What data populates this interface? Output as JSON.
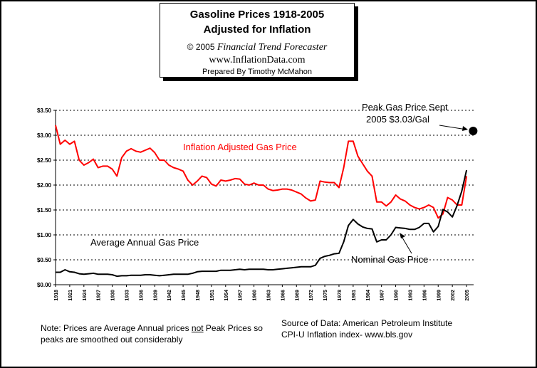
{
  "header": {
    "title_line1": "Gasoline Prices 1918-2005",
    "title_line2": "Adjusted for Inflation",
    "copyright_prefix": "© 2005",
    "copyright_name": "Financial Trend Forecaster",
    "website": "www.InflationData.com",
    "prepared_by": "Prepared By Timothy McMahon"
  },
  "notes": {
    "left_line1_a": "Note: Prices are Average Annual prices ",
    "left_line1_b": "not",
    "left_line1_c": " Peak Prices so",
    "left_line2": "peaks are smoothed out considerably",
    "source_line1": "Source of Data:  American Petroleum Institute",
    "source_line2": "CPI-U Inflation index-   www.bls.gov"
  },
  "colors": {
    "inflation_adjusted": "#ff0000",
    "nominal": "#000000",
    "grid": "#000000"
  },
  "chart_data": {
    "type": "line",
    "title": "Gasoline Prices 1918-2005",
    "subtitle": "Adjusted for Inflation",
    "xlabel": "",
    "ylabel": "",
    "ylim": [
      0,
      3.5
    ],
    "y_ticks": [
      "$0.00",
      "$0.50",
      "$1.00",
      "$1.50",
      "$2.00",
      "$2.50",
      "$3.00",
      "$3.50"
    ],
    "x_ticks": [
      1918,
      1921,
      1924,
      1927,
      1930,
      1933,
      1936,
      1939,
      1942,
      1945,
      1948,
      1951,
      1954,
      1957,
      1960,
      1963,
      1966,
      1969,
      1972,
      1975,
      1978,
      1981,
      1984,
      1987,
      1990,
      1993,
      1996,
      1999,
      2002,
      2005
    ],
    "grid": "horizontal dotted",
    "series_labels": {
      "adjusted": "Inflation Adjusted Gas Price",
      "average": "Average Annual Gas Price",
      "nominal": "Nominal Gas Price"
    },
    "annotation": {
      "text_line1": "Peak Gas Price Sept",
      "text_line2": "2005 $3.03/Gal",
      "year": 2005.5,
      "value": 3.1
    },
    "series": [
      {
        "name": "Inflation Adjusted Gas Price",
        "color": "#ff0000",
        "x": [
          1918,
          1919,
          1920,
          1921,
          1922,
          1923,
          1924,
          1925,
          1926,
          1927,
          1928,
          1929,
          1930,
          1931,
          1932,
          1933,
          1934,
          1935,
          1936,
          1937,
          1938,
          1939,
          1940,
          1941,
          1942,
          1943,
          1944,
          1945,
          1946,
          1947,
          1948,
          1949,
          1950,
          1951,
          1952,
          1953,
          1954,
          1955,
          1956,
          1957,
          1958,
          1959,
          1960,
          1961,
          1962,
          1963,
          1964,
          1965,
          1966,
          1967,
          1968,
          1969,
          1970,
          1971,
          1972,
          1973,
          1974,
          1975,
          1976,
          1977,
          1978,
          1979,
          1980,
          1981,
          1982,
          1983,
          1984,
          1985,
          1986,
          1987,
          1988,
          1989,
          1990,
          1991,
          1992,
          1993,
          1994,
          1995,
          1996,
          1997,
          1998,
          1999,
          2000,
          2001,
          2002,
          2003,
          2004,
          2005
        ],
        "values": [
          3.2,
          2.82,
          2.9,
          2.82,
          2.88,
          2.5,
          2.4,
          2.45,
          2.52,
          2.35,
          2.38,
          2.38,
          2.32,
          2.18,
          2.55,
          2.68,
          2.73,
          2.68,
          2.66,
          2.7,
          2.74,
          2.65,
          2.5,
          2.5,
          2.4,
          2.35,
          2.32,
          2.28,
          2.1,
          2.0,
          2.08,
          2.18,
          2.15,
          2.02,
          1.98,
          2.1,
          2.08,
          2.1,
          2.13,
          2.12,
          2.02,
          2.0,
          2.04,
          2.0,
          2.0,
          1.92,
          1.89,
          1.9,
          1.92,
          1.92,
          1.9,
          1.86,
          1.82,
          1.74,
          1.68,
          1.7,
          2.08,
          2.06,
          2.05,
          2.05,
          1.95,
          2.35,
          2.88,
          2.88,
          2.58,
          2.43,
          2.28,
          2.18,
          1.66,
          1.66,
          1.58,
          1.66,
          1.8,
          1.72,
          1.68,
          1.6,
          1.55,
          1.52,
          1.55,
          1.6,
          1.55,
          1.34,
          1.42,
          1.75,
          1.7,
          1.6,
          1.6,
          2.18
        ]
      },
      {
        "name": "Nominal Gas Price",
        "color": "#000000",
        "x": [
          1918,
          1919,
          1920,
          1921,
          1922,
          1923,
          1924,
          1925,
          1926,
          1927,
          1928,
          1929,
          1930,
          1931,
          1932,
          1933,
          1934,
          1935,
          1936,
          1937,
          1938,
          1939,
          1940,
          1941,
          1942,
          1943,
          1944,
          1945,
          1946,
          1947,
          1948,
          1949,
          1950,
          1951,
          1952,
          1953,
          1954,
          1955,
          1956,
          1957,
          1958,
          1959,
          1960,
          1961,
          1962,
          1963,
          1964,
          1965,
          1966,
          1967,
          1968,
          1969,
          1970,
          1971,
          1972,
          1973,
          1974,
          1975,
          1976,
          1977,
          1978,
          1979,
          1980,
          1981,
          1982,
          1983,
          1984,
          1985,
          1986,
          1987,
          1988,
          1989,
          1990,
          1991,
          1992,
          1993,
          1994,
          1995,
          1996,
          1997,
          1998,
          1999,
          2000,
          2001,
          2002,
          2003,
          2004,
          2005
        ],
        "values": [
          0.25,
          0.25,
          0.3,
          0.26,
          0.25,
          0.22,
          0.21,
          0.22,
          0.23,
          0.21,
          0.21,
          0.21,
          0.2,
          0.17,
          0.18,
          0.18,
          0.19,
          0.19,
          0.19,
          0.2,
          0.2,
          0.19,
          0.18,
          0.19,
          0.2,
          0.21,
          0.21,
          0.21,
          0.21,
          0.23,
          0.26,
          0.27,
          0.27,
          0.27,
          0.27,
          0.29,
          0.29,
          0.29,
          0.3,
          0.31,
          0.3,
          0.31,
          0.31,
          0.31,
          0.31,
          0.3,
          0.3,
          0.31,
          0.32,
          0.33,
          0.34,
          0.35,
          0.36,
          0.36,
          0.36,
          0.39,
          0.53,
          0.57,
          0.59,
          0.62,
          0.63,
          0.86,
          1.19,
          1.31,
          1.22,
          1.16,
          1.13,
          1.12,
          0.86,
          0.9,
          0.9,
          1.0,
          1.15,
          1.14,
          1.13,
          1.11,
          1.11,
          1.15,
          1.23,
          1.23,
          1.06,
          1.17,
          1.51,
          1.46,
          1.36,
          1.59,
          1.88,
          2.3
        ]
      }
    ]
  }
}
